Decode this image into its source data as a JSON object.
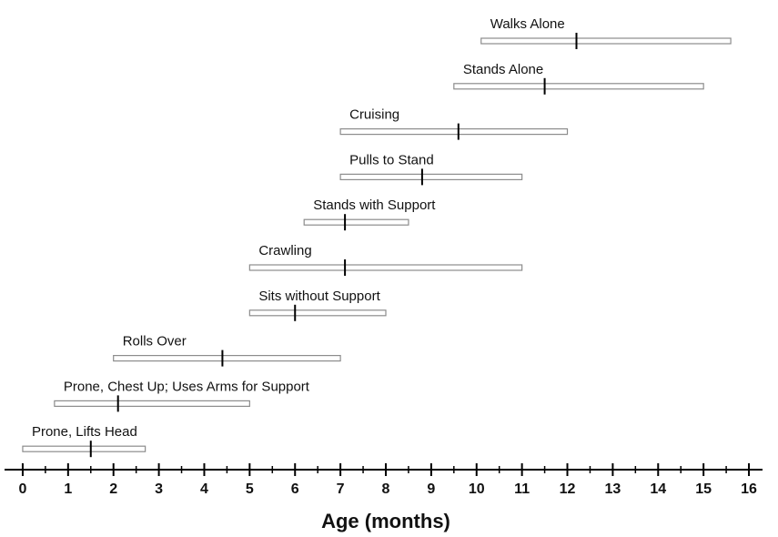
{
  "chart_data": {
    "type": "range",
    "xlabel": "Age (months)",
    "categories": [
      "Walks Alone",
      "Stands Alone",
      "Cruising",
      "Pulls to Stand",
      "Stands with Support",
      "Crawling",
      "Sits without Support",
      "Rolls Over",
      "Prone, Chest Up; Uses Arms for Support",
      "Prone, Lifts Head"
    ],
    "start": [
      10.1,
      9.5,
      7.0,
      7.0,
      6.2,
      5.0,
      5.0,
      2.0,
      0.7,
      0.0
    ],
    "end": [
      15.6,
      15.0,
      12.0,
      11.0,
      8.5,
      11.0,
      8.0,
      7.0,
      5.0,
      2.7
    ],
    "median": [
      12.2,
      11.5,
      9.6,
      8.8,
      7.1,
      7.1,
      6.0,
      4.4,
      2.1,
      1.5
    ],
    "color": "#8c8c8c",
    "marker_color": "#000000",
    "xlim": [
      -0.4,
      16.3
    ],
    "xticks": [
      0,
      1,
      2,
      3,
      4,
      5,
      6,
      7,
      8,
      9,
      10,
      11,
      12,
      13,
      14,
      15,
      16
    ],
    "xminorticks": [
      0.5,
      1.5,
      2.5,
      3.5,
      4.5,
      5.5,
      6.5,
      7.5,
      8.5,
      9.5,
      10.5,
      11.5,
      12.5,
      13.5,
      14.5,
      15.5
    ]
  }
}
